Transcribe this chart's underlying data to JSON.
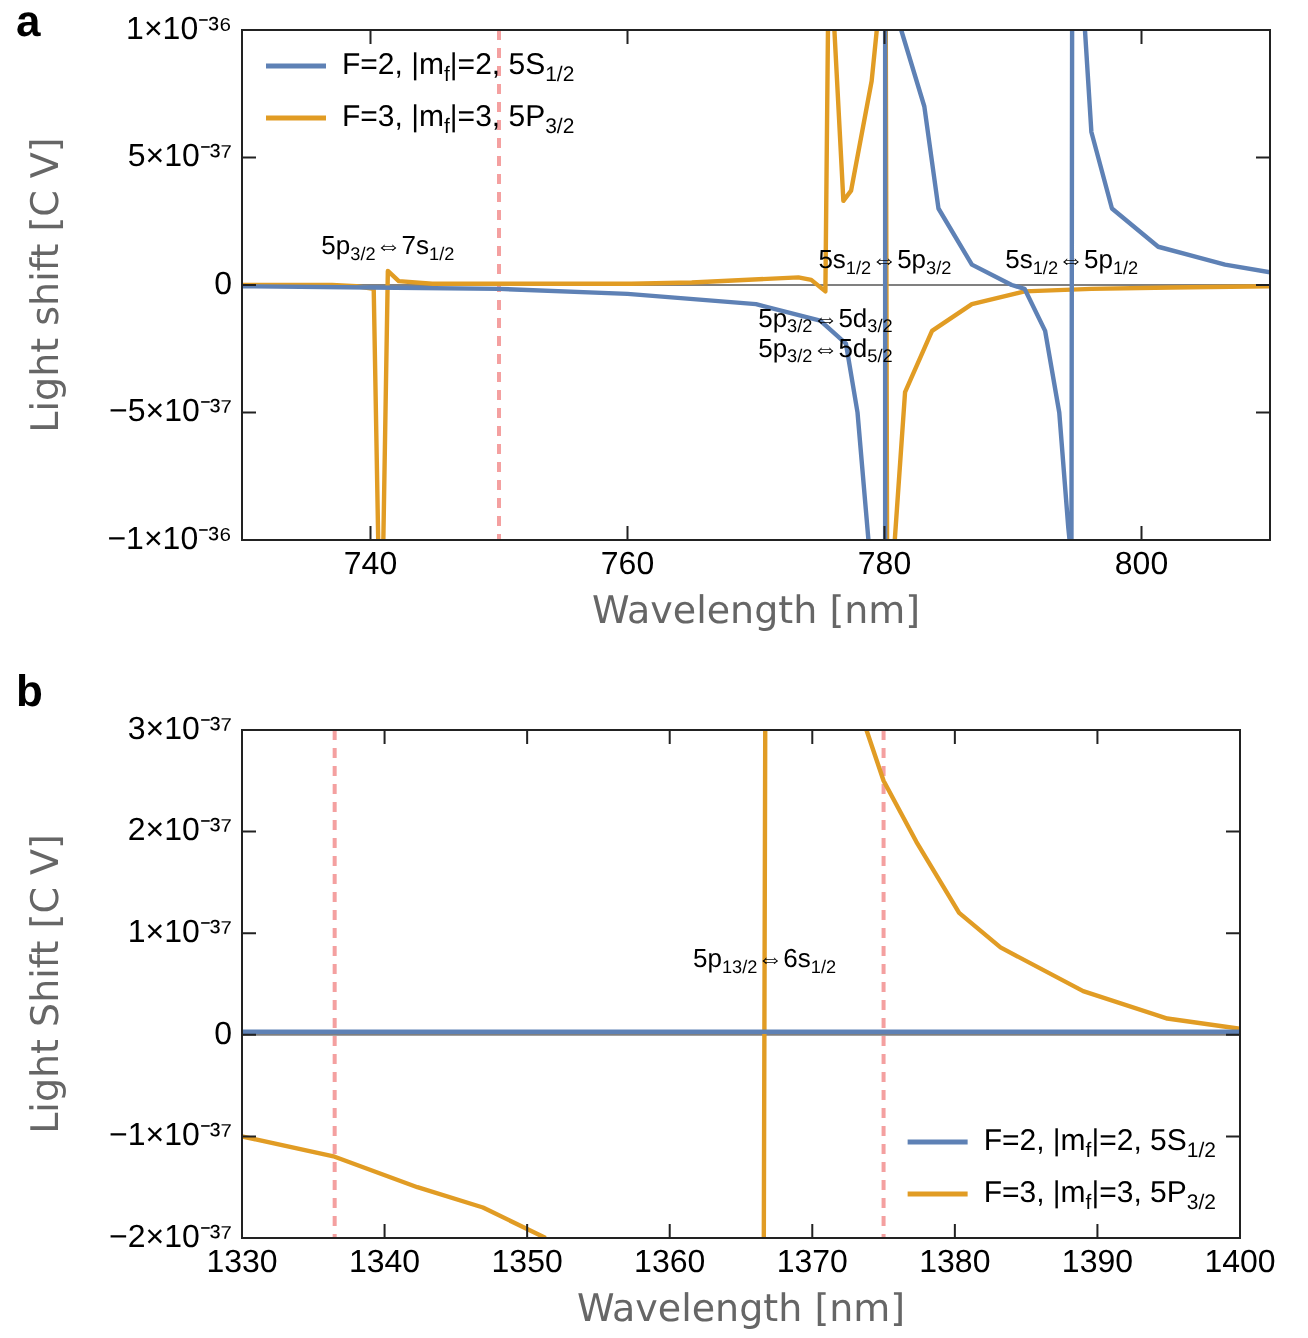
{
  "chart_data": [
    {
      "type": "line",
      "title": "a",
      "xlabel": "Wavelength [nm]",
      "ylabel": "Light shift [C V]",
      "legend": "top left",
      "xlim": [
        730,
        810
      ],
      "xticks": [
        740,
        760,
        780,
        800
      ],
      "ylim": [
        -1e-36,
        1e-36
      ],
      "yticks": [
        {
          "value": -1e-36,
          "label": "−1×10⁻³⁶"
        },
        {
          "value": -5e-37,
          "label": "−5×10⁻³⁷"
        },
        0,
        {
          "value": 5e-37,
          "label": "5×10⁻³⁷"
        },
        {
          "value": 1e-36,
          "label": "1×10⁻³⁶"
        }
      ],
      "series": [
        {
          "name": "F=2, |m$_{f}$|=2, 5S$_{1/2}$",
          "color": "#5e81b5",
          "x": [
            730,
            740,
            750,
            760,
            770,
            775,
            777,
            777.9,
            778.75,
            779.4,
            780.0,
            780.05,
            780.7,
            781.3,
            783.1,
            784.2,
            786.8,
            789.9,
            790.9,
            792.5,
            793.6,
            794.3,
            794.4,
            794.5,
            794.55,
            794.6,
            795.1,
            795.6,
            796.1,
            797.7,
            801.3,
            806.5,
            810
          ],
          "values": [
            -5e-39,
            -1e-38,
            -1.5e-38,
            -3.5e-38,
            -7.5e-38,
            -1.4e-37,
            -2.3e-37,
            -5e-37,
            -1e-36,
            null,
            -1e-36,
            1e-36,
            null,
            1e-36,
            7e-37,
            3e-37,
            8e-38,
            0,
            -1.5e-38,
            -1.8e-37,
            -5e-37,
            -9.5e-37,
            -1e-36,
            null,
            -1e-36,
            1e-36,
            null,
            1e-36,
            6e-37,
            3e-37,
            1.5e-37,
            8e-38,
            5e-38
          ]
        },
        {
          "name": "F=3, |m$_{f}$|=3, 5P$_{3/2}$",
          "color": "#e19c24",
          "x": [
            730,
            737,
            738.9,
            740.25,
            740.6,
            740.8,
            741.0,
            741.35,
            742.2,
            744.8,
            750,
            760.3,
            765,
            773.3,
            774.3,
            775.4,
            775.6,
            775.85,
            776.1,
            776.8,
            777.4,
            779,
            779.4,
            779.8,
            780.1,
            780.2,
            780.5,
            780.8,
            781.6,
            783.7,
            786.8,
            790.9,
            796.1,
            802.3,
            810
          ],
          "values": [
            0,
            0,
            -5e-39,
            -1.5e-38,
            -1e-36,
            null,
            -1e-36,
            5.5e-38,
            1.5e-38,
            5e-39,
            5e-39,
            5e-39,
            1e-38,
            3e-38,
            2e-38,
            -2.5e-38,
            1e-36,
            null,
            1e-36,
            3.3e-37,
            3.7e-37,
            8e-37,
            1e-36,
            null,
            1e-36,
            -1e-36,
            null,
            -1e-36,
            -4.2e-37,
            -1.8e-37,
            -7.5e-38,
            -2.5e-38,
            -1.5e-38,
            -1e-38,
            -5e-39
          ]
        }
      ],
      "ref_lines": [
        {
          "axis": "y",
          "value": 0,
          "color": "#808080",
          "line_style": "solid"
        },
        {
          "axis": "x",
          "value": 750,
          "color": "#f4a0a0",
          "line_style": "dashed"
        }
      ],
      "annotations": [
        {
          "text": "5p$_{3/2}$⇔7s$_{1/2}$",
          "x": 741.35,
          "y": 5.5e-38
        },
        {
          "text": "5s$_{1/2}$⇔5p$_{3/2}$",
          "x": 780.03,
          "y": 0
        },
        {
          "text": "5s$_{1/2}$⇔5p$_{1/2}$",
          "x": 794.57,
          "y": 0
        },
        {
          "text": "5p$_{3/2}$⇔5d$_{3/2}$",
          "x": 775.4,
          "y": -2.5e-38
        },
        {
          "text": "5p$_{3/2}$⇔5d$_{5/2}$",
          "x": 775.4,
          "y": -2.5e-38
        }
      ]
    },
    {
      "type": "line",
      "title": "b",
      "xlabel": "Wavelength [nm]",
      "ylabel": "Light Shift [C V]",
      "legend": "bottom right",
      "xlim": [
        1330,
        1400
      ],
      "xticks": [
        1330,
        1340,
        1350,
        1360,
        1370,
        1380,
        1390,
        1400
      ],
      "ylim": [
        -2e-37,
        3e-37
      ],
      "yticks": [
        {
          "value": -2e-37,
          "label": "−2×10⁻³⁷"
        },
        {
          "value": -1e-37,
          "label": "−1×10⁻³⁷"
        },
        0,
        {
          "value": 1e-37,
          "label": "1×10⁻³⁷"
        },
        {
          "value": 2e-37,
          "label": "2×10⁻³⁷"
        },
        {
          "value": 3e-37,
          "label": "3×10⁻³⁷"
        }
      ],
      "series": [
        {
          "name": "F=2, |m$_{f}$|=2, 5S$_{1/2}$",
          "color": "#5e81b5",
          "x": [
            1330,
            1400
          ],
          "values": [
            3e-39,
            3e-39
          ]
        },
        {
          "name": "F=3, |m$_{f}$|=3, 5P$_{3/2}$",
          "color": "#e19c24",
          "x": [
            1330,
            1336.5,
            1342.3,
            1346.9,
            1351.3,
            1360,
            1366.6,
            1366.7,
            1370,
            1373.8,
            1375,
            1377.3,
            1380.3,
            1383.2,
            1389,
            1394.9,
            1400
          ],
          "values": [
            -1e-37,
            -1.2e-37,
            -1.5e-37,
            -1.7e-37,
            -2e-37,
            null,
            -2e-37,
            3e-37,
            null,
            3e-37,
            2.5e-37,
            1.9e-37,
            1.2e-37,
            8.6e-38,
            4.3e-38,
            1.6e-38,
            6e-39
          ]
        }
      ],
      "ref_lines": [
        {
          "axis": "y",
          "value": 0,
          "color": "#808080",
          "line_style": "solid"
        },
        {
          "axis": "x",
          "value": 1336.5,
          "color": "#f4a0a0",
          "line_style": "dashed"
        },
        {
          "axis": "x",
          "value": 1375,
          "color": "#f4a0a0",
          "line_style": "dashed"
        }
      ],
      "annotations": [
        {
          "text": "5p$_{13/2}$⇔6s$_{1/2}$",
          "x": 1366.65,
          "y": 5e-38
        }
      ]
    }
  ]
}
